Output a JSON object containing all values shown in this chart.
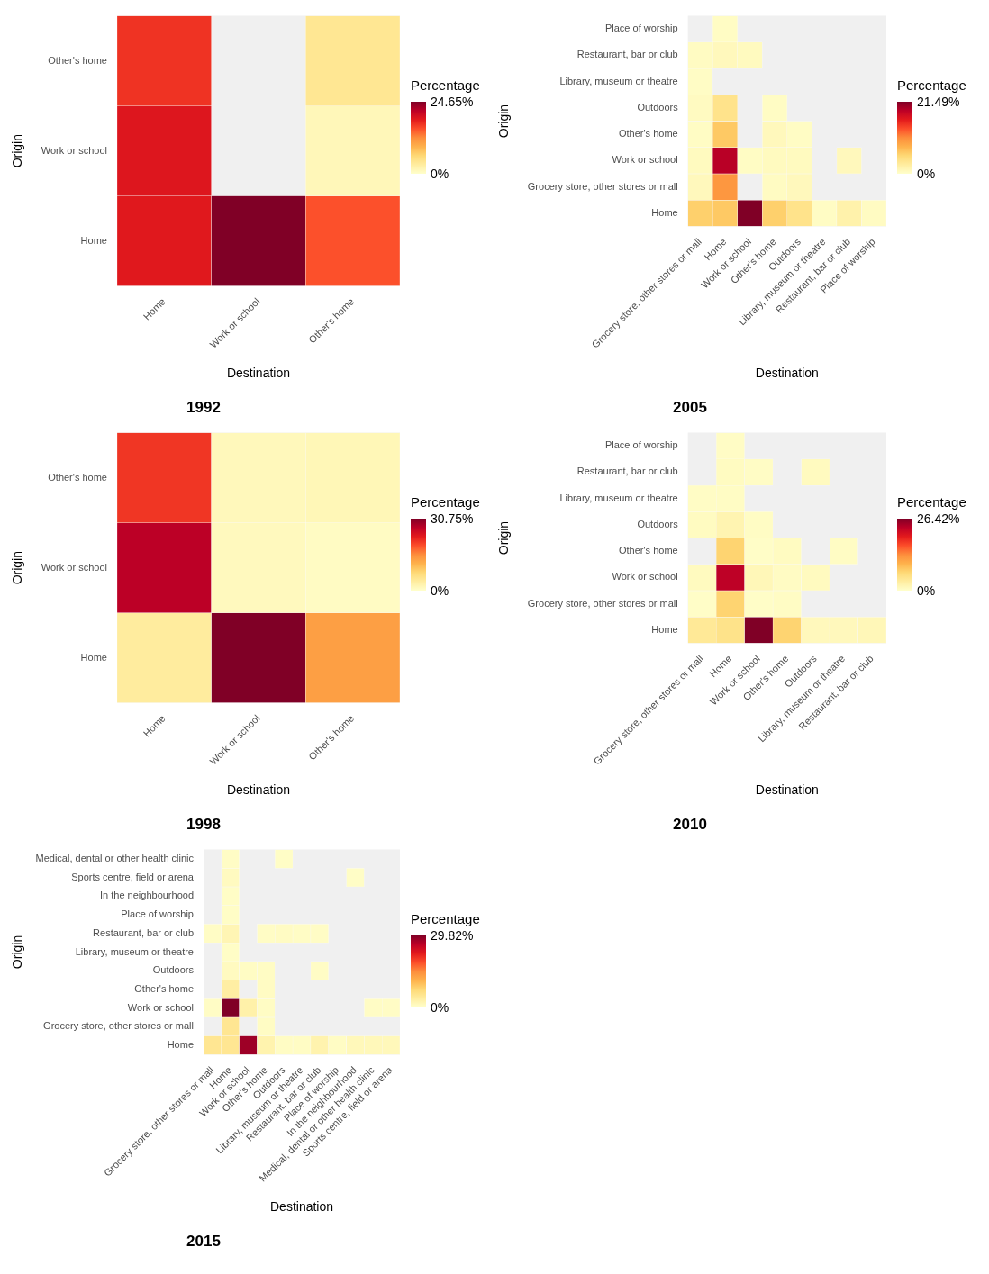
{
  "chart_data": [
    {
      "type": "heatmap",
      "title": "1992",
      "xlabel": "Destination",
      "ylabel": "Origin",
      "clabel": "Percentage",
      "categories": [
        "Home",
        "Work or school",
        "Other's home"
      ],
      "y_categories": [
        "Other's home",
        "Work or school",
        "Home"
      ],
      "cells": [
        [
          17,
          null,
          4
        ],
        [
          19,
          null,
          1.3
        ],
        [
          18.7,
          24.65,
          15.3
        ]
      ],
      "clim": [
        0,
        24.65
      ],
      "cticks": [
        {
          "value": 0,
          "label": "0%"
        },
        {
          "value": 24.65,
          "label": "24.65%"
        }
      ]
    },
    {
      "type": "heatmap",
      "title": "2005",
      "xlabel": "Destination",
      "ylabel": "Origin",
      "clabel": "Percentage",
      "categories": [
        "Grocery store, other stores or mall",
        "Home",
        "Work or school",
        "Other's home",
        "Outdoors",
        "Library, museum or theatre",
        "Restaurant, bar or club",
        "Place of worship"
      ],
      "y_categories": [
        "Place of worship",
        "Restaurant, bar or club",
        "Library, museum or theatre",
        "Outdoors",
        "Other's home",
        "Work or school",
        "Grocery store, other stores or mall",
        "Home"
      ],
      "cells": [
        [
          null,
          0.5,
          null,
          null,
          null,
          null,
          null,
          null
        ],
        [
          0.6,
          1,
          0.8,
          null,
          null,
          null,
          null,
          null
        ],
        [
          0.4,
          null,
          null,
          null,
          null,
          null,
          null,
          null
        ],
        [
          0.7,
          4,
          null,
          0.5,
          null,
          null,
          null,
          null
        ],
        [
          0.5,
          6.5,
          null,
          1,
          0.5,
          null,
          null,
          null
        ],
        [
          0.8,
          19,
          0.5,
          0.8,
          0.8,
          null,
          1,
          null
        ],
        [
          1,
          10,
          null,
          0.6,
          1,
          null,
          null,
          null
        ],
        [
          6,
          6.5,
          21.49,
          6,
          4,
          0.5,
          2,
          0.6
        ]
      ],
      "clim": [
        0,
        21.49
      ],
      "cticks": [
        {
          "value": 0,
          "label": "0%"
        },
        {
          "value": 21.49,
          "label": "21.49%"
        }
      ]
    },
    {
      "type": "heatmap",
      "title": "1998",
      "xlabel": "Destination",
      "ylabel": "Origin",
      "clabel": "Percentage",
      "categories": [
        "Home",
        "Work or school",
        "Other's home"
      ],
      "y_categories": [
        "Other's home",
        "Work or school",
        "Home"
      ],
      "cells": [
        [
          21,
          1.5,
          1.8
        ],
        [
          27,
          1.2,
          0.8
        ],
        [
          4,
          30.75,
          13.5
        ]
      ],
      "clim": [
        0,
        30.75
      ],
      "cticks": [
        {
          "value": 0,
          "label": "0%"
        },
        {
          "value": 30.75,
          "label": "30.75%"
        }
      ]
    },
    {
      "type": "heatmap",
      "title": "2010",
      "xlabel": "Destination",
      "ylabel": "Origin",
      "clabel": "Percentage",
      "categories": [
        "Grocery store, other stores or mall",
        "Home",
        "Work or school",
        "Other's home",
        "Outdoors",
        "Library, museum or theatre",
        "Restaurant, bar or club"
      ],
      "y_categories": [
        "Place of worship",
        "Restaurant, bar or club",
        "Library, museum or theatre",
        "Outdoors",
        "Other's home",
        "Work or school",
        "Grocery store, other stores or mall",
        "Home"
      ],
      "cells": [
        [
          null,
          0.5,
          null,
          null,
          null,
          null,
          null
        ],
        [
          null,
          0.8,
          0.5,
          null,
          1,
          null,
          null
        ],
        [
          0.5,
          0.6,
          null,
          null,
          null,
          null,
          null
        ],
        [
          0.8,
          2,
          0.6,
          null,
          null,
          null,
          null
        ],
        [
          null,
          7,
          0.4,
          0.8,
          null,
          0.6,
          null
        ],
        [
          1,
          23,
          1.5,
          0.7,
          1,
          null,
          null
        ],
        [
          0.4,
          7,
          0.4,
          0.6,
          null,
          null,
          null
        ],
        [
          4,
          5,
          26.42,
          7,
          1.2,
          1.2,
          1.5
        ]
      ],
      "clim": [
        0,
        26.42
      ],
      "cticks": [
        {
          "value": 0,
          "label": "0%"
        },
        {
          "value": 26.42,
          "label": "26.42%"
        }
      ]
    },
    {
      "type": "heatmap",
      "title": "2015",
      "xlabel": "Destination",
      "ylabel": "Origin",
      "clabel": "Percentage",
      "categories": [
        "Grocery store, other stores or mall",
        "Home",
        "Work or school",
        "Other's home",
        "Outdoors",
        "Library, museum or theatre",
        "Restaurant, bar or club",
        "Place of worship",
        "In the neighbourhood",
        "Medical, dental or other health clinic",
        "Sports centre, field or arena"
      ],
      "y_categories": [
        "Medical, dental or other health clinic",
        "Sports centre, field or arena",
        "In the neighbourhood",
        "Place of worship",
        "Restaurant, bar or club",
        "Library, museum or theatre",
        "Outdoors",
        "Other's home",
        "Work or school",
        "Grocery store, other stores or mall",
        "Home"
      ],
      "cells": [
        [
          null,
          0.6,
          null,
          null,
          0.5,
          null,
          null,
          null,
          null,
          null,
          null
        ],
        [
          null,
          1,
          null,
          null,
          null,
          null,
          null,
          null,
          0.5,
          null,
          null
        ],
        [
          null,
          0.5,
          null,
          null,
          null,
          null,
          null,
          null,
          null,
          null,
          null
        ],
        [
          null,
          0.5,
          null,
          null,
          null,
          null,
          null,
          null,
          null,
          null,
          null
        ],
        [
          0.6,
          2,
          null,
          0.6,
          0.8,
          0.6,
          0.6,
          null,
          null,
          null,
          null
        ],
        [
          null,
          0.5,
          null,
          null,
          null,
          null,
          null,
          null,
          null,
          null,
          null
        ],
        [
          null,
          1,
          0.7,
          0.7,
          null,
          null,
          0.6,
          null,
          null,
          null,
          null
        ],
        [
          null,
          3.5,
          null,
          0.8,
          null,
          null,
          null,
          null,
          null,
          null,
          null
        ],
        [
          0.6,
          29.82,
          3,
          0.7,
          null,
          null,
          null,
          null,
          null,
          0.6,
          0.6
        ],
        [
          null,
          5,
          null,
          0.7,
          null,
          null,
          null,
          null,
          null,
          null,
          null
        ],
        [
          5,
          5,
          28,
          2.5,
          0.7,
          0.7,
          2.5,
          0.7,
          1.5,
          1.5,
          1.5
        ]
      ],
      "clim": [
        0,
        29.82
      ],
      "cticks": [
        {
          "value": 0,
          "label": "0%"
        },
        {
          "value": 29.82,
          "label": "29.82%"
        }
      ]
    }
  ]
}
